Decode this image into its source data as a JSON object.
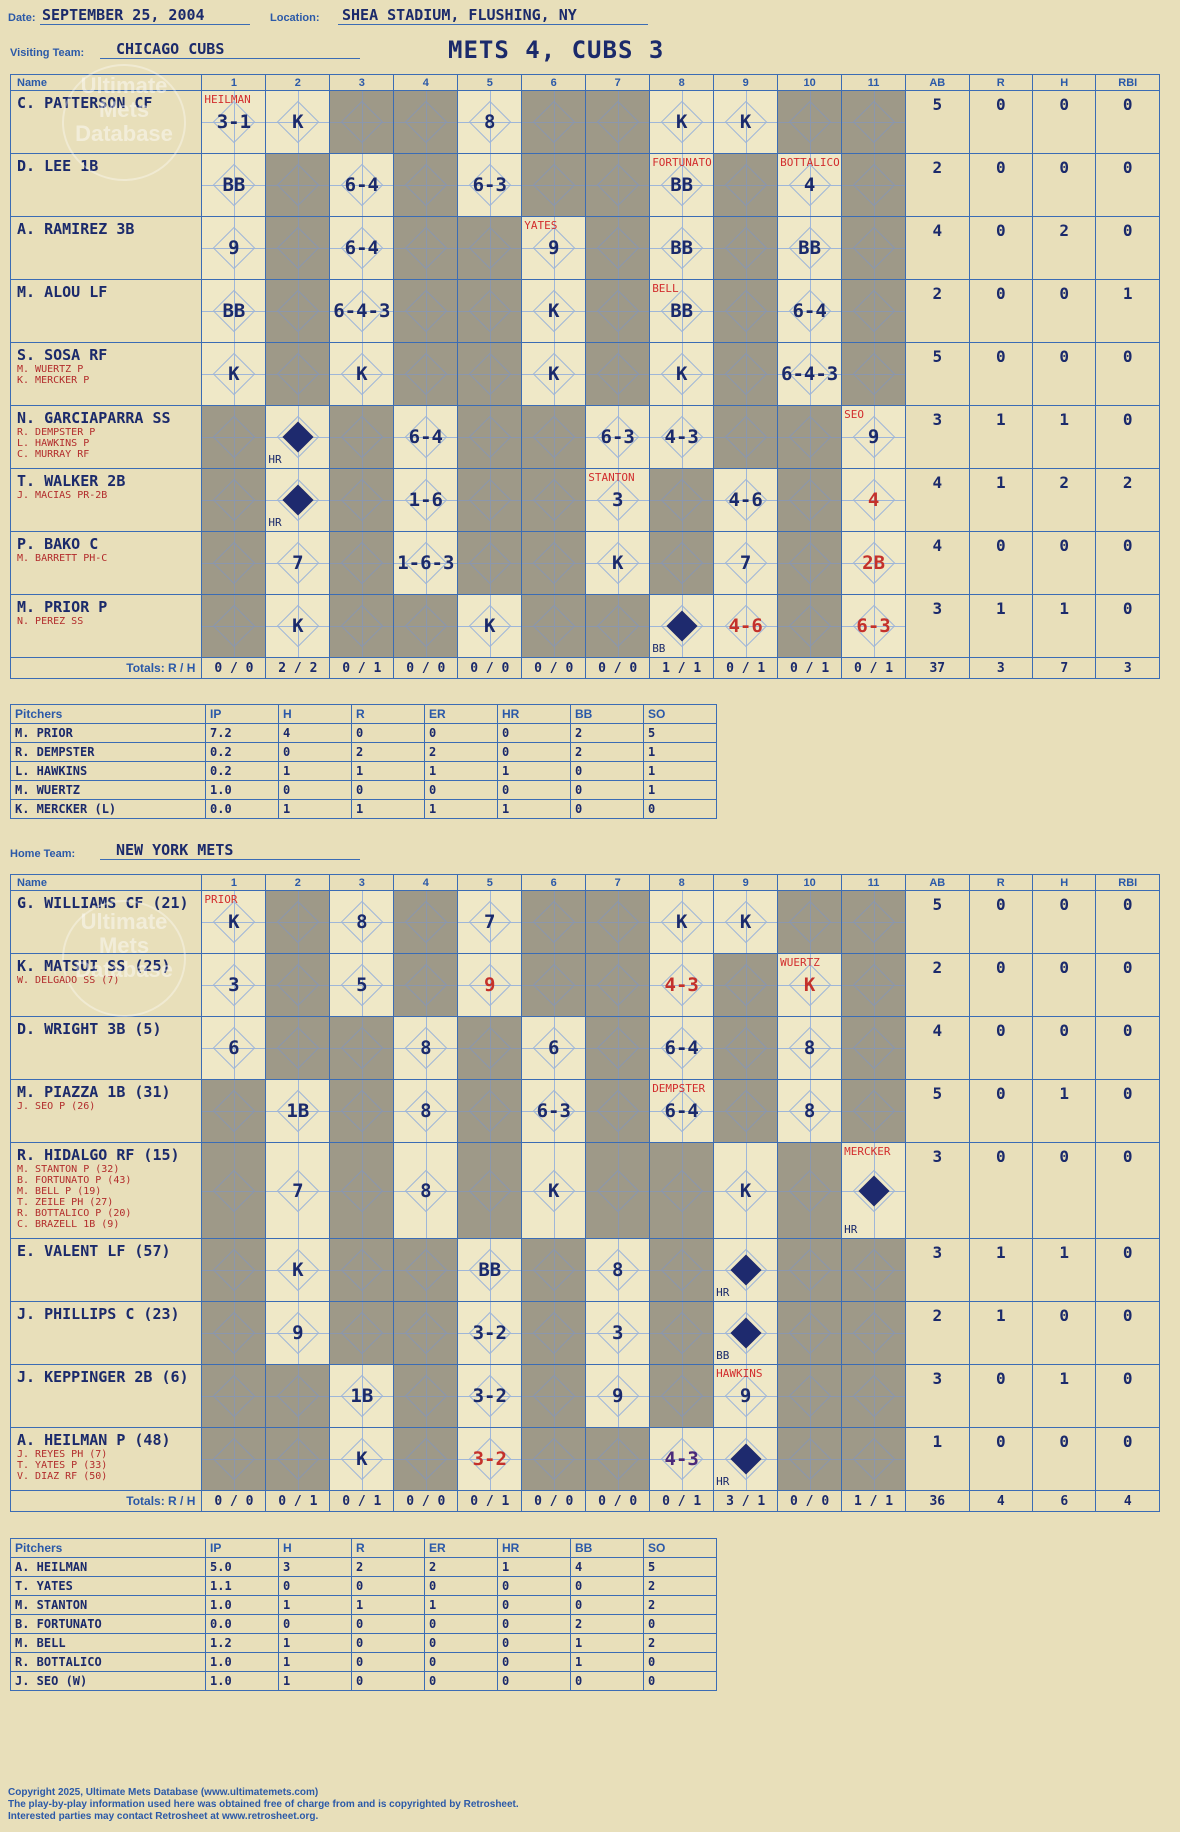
{
  "header": {
    "date_label": "Date:",
    "date": "SEPTEMBER 25, 2004",
    "location_label": "Location:",
    "location": "SHEA STADIUM, FLUSHING, NY",
    "visiting_label": "Visiting Team:",
    "visiting_team": "CHICAGO CUBS",
    "home_label": "Home Team:",
    "home_team": "NEW YORK METS",
    "title": "METS 4, CUBS 3"
  },
  "watermark": {
    "line1": "Ultimate",
    "line2": "Mets",
    "line3": "Database",
    "url": "ultimatemets.com"
  },
  "columns": {
    "name": "Name",
    "innings": [
      "1",
      "2",
      "3",
      "4",
      "5",
      "6",
      "7",
      "8",
      "9",
      "10",
      "11"
    ],
    "stats": [
      "AB",
      "R",
      "H",
      "RBI"
    ],
    "totals_label": "Totals:",
    "r_label": "R",
    "h_label": "H"
  },
  "visitors": {
    "batters": [
      {
        "name": "C. PATTERSON CF",
        "subs": [],
        "ab": "5",
        "r": "0",
        "h": "0",
        "rbi": "0",
        "cells": [
          {
            "t": "3-1",
            "sub": "HEILMAN"
          },
          {
            "t": "K"
          },
          {
            "t": ""
          },
          {
            "t": ""
          },
          {
            "t": "8"
          },
          {
            "t": ""
          },
          {
            "t": ""
          },
          {
            "t": "K"
          },
          {
            "t": "K"
          },
          {
            "t": ""
          },
          {
            "t": ""
          }
        ]
      },
      {
        "name": "D. LEE 1B",
        "subs": [],
        "ab": "2",
        "r": "0",
        "h": "0",
        "rbi": "0",
        "cells": [
          {
            "t": "BB"
          },
          {
            "t": ""
          },
          {
            "t": "6-4"
          },
          {
            "t": ""
          },
          {
            "t": "6-3"
          },
          {
            "t": ""
          },
          {
            "t": ""
          },
          {
            "t": "BB",
            "sub": "FORTUNATO"
          },
          {
            "t": ""
          },
          {
            "t": "4",
            "sub": "BOTTALICO"
          },
          {
            "t": ""
          }
        ]
      },
      {
        "name": "A. RAMIREZ 3B",
        "subs": [],
        "ab": "4",
        "r": "0",
        "h": "2",
        "rbi": "0",
        "cells": [
          {
            "t": "9"
          },
          {
            "t": ""
          },
          {
            "t": "6-4"
          },
          {
            "t": ""
          },
          {
            "t": ""
          },
          {
            "t": "9",
            "sub": "YATES"
          },
          {
            "t": ""
          },
          {
            "t": "BB"
          },
          {
            "t": ""
          },
          {
            "t": "BB"
          },
          {
            "t": ""
          }
        ]
      },
      {
        "name": "M. ALOU LF",
        "subs": [],
        "ab": "2",
        "r": "0",
        "h": "0",
        "rbi": "1",
        "cells": [
          {
            "t": "BB"
          },
          {
            "t": ""
          },
          {
            "t": "6-4-3"
          },
          {
            "t": ""
          },
          {
            "t": ""
          },
          {
            "t": "K"
          },
          {
            "t": ""
          },
          {
            "t": "BB",
            "sub": "BELL"
          },
          {
            "t": ""
          },
          {
            "t": "6-4"
          },
          {
            "t": ""
          }
        ]
      },
      {
        "name": "S. SOSA RF",
        "subs": [
          "M. WUERTZ P",
          "K. MERCKER P"
        ],
        "ab": "5",
        "r": "0",
        "h": "0",
        "rbi": "0",
        "cells": [
          {
            "t": "K"
          },
          {
            "t": ""
          },
          {
            "t": "K"
          },
          {
            "t": ""
          },
          {
            "t": ""
          },
          {
            "t": "K"
          },
          {
            "t": ""
          },
          {
            "t": "K"
          },
          {
            "t": ""
          },
          {
            "t": "6-4-3"
          },
          {
            "t": ""
          }
        ]
      },
      {
        "name": "N. GARCIAPARRA SS",
        "subs": [
          "R. DEMPSTER P",
          "L. HAWKINS P",
          "C. MURRAY RF"
        ],
        "ab": "3",
        "r": "1",
        "h": "1",
        "rbi": "0",
        "cells": [
          {
            "t": ""
          },
          {
            "t": "HR",
            "scored": true
          },
          {
            "t": ""
          },
          {
            "t": "6-4"
          },
          {
            "t": ""
          },
          {
            "t": ""
          },
          {
            "t": "6-3"
          },
          {
            "t": "4-3"
          },
          {
            "t": ""
          },
          {
            "t": ""
          },
          {
            "t": "9",
            "sub": "SEO"
          }
        ]
      },
      {
        "name": "T. WALKER 2B",
        "subs": [
          "J. MACIAS PR-2B"
        ],
        "ab": "4",
        "r": "1",
        "h": "2",
        "rbi": "2",
        "cells": [
          {
            "t": ""
          },
          {
            "t": "HR",
            "scored": true
          },
          {
            "t": ""
          },
          {
            "t": "1-6"
          },
          {
            "t": ""
          },
          {
            "t": ""
          },
          {
            "t": "3",
            "sub": "STANTON"
          },
          {
            "t": ""
          },
          {
            "t": "4-6"
          },
          {
            "t": ""
          },
          {
            "t": "4",
            "red": true
          }
        ]
      },
      {
        "name": "P. BAKO C",
        "subs": [
          "M. BARRETT PH-C"
        ],
        "ab": "4",
        "r": "0",
        "h": "0",
        "rbi": "0",
        "cells": [
          {
            "t": ""
          },
          {
            "t": "7"
          },
          {
            "t": ""
          },
          {
            "t": "1-6-3"
          },
          {
            "t": ""
          },
          {
            "t": ""
          },
          {
            "t": "K"
          },
          {
            "t": ""
          },
          {
            "t": "7"
          },
          {
            "t": ""
          },
          {
            "t": "2B",
            "red": true
          }
        ]
      },
      {
        "name": "M. PRIOR P",
        "subs": [
          "N. PEREZ SS"
        ],
        "ab": "3",
        "r": "1",
        "h": "1",
        "rbi": "0",
        "cells": [
          {
            "t": ""
          },
          {
            "t": "K"
          },
          {
            "t": ""
          },
          {
            "t": ""
          },
          {
            "t": "K"
          },
          {
            "t": ""
          },
          {
            "t": ""
          },
          {
            "t": "BB",
            "scored": true
          },
          {
            "t": "4-6",
            "red": true
          },
          {
            "t": ""
          },
          {
            "t": "6-3",
            "red": true
          }
        ]
      }
    ],
    "totals": [
      [
        "0",
        "0"
      ],
      [
        "2",
        "2"
      ],
      [
        "0",
        "1"
      ],
      [
        "0",
        "0"
      ],
      [
        "0",
        "0"
      ],
      [
        "0",
        "0"
      ],
      [
        "0",
        "0"
      ],
      [
        "1",
        "1"
      ],
      [
        "0",
        "1"
      ],
      [
        "0",
        "1"
      ],
      [
        "0",
        "1"
      ]
    ],
    "stat_totals": [
      "37",
      "3",
      "7",
      "3"
    ],
    "pitchers": [
      [
        "M. PRIOR",
        "7.2",
        "4",
        "0",
        "0",
        "0",
        "2",
        "5"
      ],
      [
        "R. DEMPSTER",
        "0.2",
        "0",
        "2",
        "2",
        "0",
        "2",
        "1"
      ],
      [
        "L. HAWKINS",
        "0.2",
        "1",
        "1",
        "1",
        "1",
        "0",
        "1"
      ],
      [
        "M. WUERTZ",
        "1.0",
        "0",
        "0",
        "0",
        "0",
        "0",
        "1"
      ],
      [
        "K. MERCKER (L)",
        "0.0",
        "1",
        "1",
        "1",
        "1",
        "0",
        "0"
      ]
    ]
  },
  "home": {
    "batters": [
      {
        "name": "G. WILLIAMS CF (21)",
        "subs": [],
        "ab": "5",
        "r": "0",
        "h": "0",
        "rbi": "0",
        "cells": [
          {
            "t": "K",
            "sub": "PRIOR"
          },
          {
            "t": ""
          },
          {
            "t": "8"
          },
          {
            "t": ""
          },
          {
            "t": "7"
          },
          {
            "t": ""
          },
          {
            "t": ""
          },
          {
            "t": "K"
          },
          {
            "t": "K"
          },
          {
            "t": ""
          },
          {
            "t": ""
          }
        ]
      },
      {
        "name": "K. MATSUI SS (25)",
        "subs": [
          "W. DELGADO SS (7)"
        ],
        "ab": "2",
        "r": "0",
        "h": "0",
        "rbi": "0",
        "cells": [
          {
            "t": "3"
          },
          {
            "t": ""
          },
          {
            "t": "5"
          },
          {
            "t": ""
          },
          {
            "t": "9",
            "red": true
          },
          {
            "t": ""
          },
          {
            "t": ""
          },
          {
            "t": "4-3",
            "red": true
          },
          {
            "t": ""
          },
          {
            "t": "K",
            "sub": "WUERTZ",
            "red": true
          },
          {
            "t": ""
          }
        ]
      },
      {
        "name": "D. WRIGHT 3B (5)",
        "subs": [],
        "ab": "4",
        "r": "0",
        "h": "0",
        "rbi": "0",
        "cells": [
          {
            "t": "6"
          },
          {
            "t": ""
          },
          {
            "t": ""
          },
          {
            "t": "8"
          },
          {
            "t": ""
          },
          {
            "t": "6"
          },
          {
            "t": ""
          },
          {
            "t": "6-4"
          },
          {
            "t": ""
          },
          {
            "t": "8"
          },
          {
            "t": ""
          }
        ]
      },
      {
        "name": "M. PIAZZA 1B (31)",
        "subs": [
          "J. SEO P (26)"
        ],
        "ab": "5",
        "r": "0",
        "h": "1",
        "rbi": "0",
        "cells": [
          {
            "t": ""
          },
          {
            "t": "1B"
          },
          {
            "t": ""
          },
          {
            "t": "8"
          },
          {
            "t": ""
          },
          {
            "t": "6-3"
          },
          {
            "t": ""
          },
          {
            "t": "6-4",
            "sub": "DEMPSTER"
          },
          {
            "t": ""
          },
          {
            "t": "8"
          },
          {
            "t": ""
          }
        ]
      },
      {
        "name": "R. HIDALGO RF (15)",
        "subs": [
          "M. STANTON P (32)",
          "B. FORTUNATO P (43)",
          "M. BELL P (19)",
          "T. ZEILE PH (27)",
          "R. BOTTALICO P (20)",
          "C. BRAZELL 1B (9)"
        ],
        "ab": "3",
        "r": "0",
        "h": "0",
        "rbi": "0",
        "cells": [
          {
            "t": ""
          },
          {
            "t": "7"
          },
          {
            "t": ""
          },
          {
            "t": "8"
          },
          {
            "t": ""
          },
          {
            "t": "K"
          },
          {
            "t": ""
          },
          {
            "t": ""
          },
          {
            "t": "K"
          },
          {
            "t": ""
          },
          {
            "t": "HR",
            "scored": true,
            "sub": "MERCKER"
          }
        ]
      },
      {
        "name": "E. VALENT LF (57)",
        "subs": [],
        "ab": "3",
        "r": "1",
        "h": "1",
        "rbi": "0",
        "cells": [
          {
            "t": ""
          },
          {
            "t": "K"
          },
          {
            "t": ""
          },
          {
            "t": ""
          },
          {
            "t": "BB"
          },
          {
            "t": ""
          },
          {
            "t": "8"
          },
          {
            "t": ""
          },
          {
            "t": "HR",
            "scored": true
          },
          {
            "t": ""
          },
          {
            "t": ""
          }
        ]
      },
      {
        "name": "J. PHILLIPS C (23)",
        "subs": [],
        "ab": "2",
        "r": "1",
        "h": "0",
        "rbi": "0",
        "cells": [
          {
            "t": ""
          },
          {
            "t": "9"
          },
          {
            "t": ""
          },
          {
            "t": ""
          },
          {
            "t": "3-2"
          },
          {
            "t": ""
          },
          {
            "t": "3"
          },
          {
            "t": ""
          },
          {
            "t": "BB",
            "scored": true
          },
          {
            "t": ""
          },
          {
            "t": ""
          }
        ]
      },
      {
        "name": "J. KEPPINGER 2B (6)",
        "subs": [],
        "ab": "3",
        "r": "0",
        "h": "1",
        "rbi": "0",
        "cells": [
          {
            "t": ""
          },
          {
            "t": ""
          },
          {
            "t": "1B"
          },
          {
            "t": ""
          },
          {
            "t": "3-2"
          },
          {
            "t": ""
          },
          {
            "t": "9"
          },
          {
            "t": ""
          },
          {
            "t": "9",
            "sub": "HAWKINS"
          },
          {
            "t": ""
          },
          {
            "t": ""
          }
        ]
      },
      {
        "name": "A. HEILMAN P (48)",
        "subs": [
          "J. REYES PH (7)",
          "T. YATES P (33)",
          "V. DIAZ RF (50)"
        ],
        "ab": "1",
        "r": "0",
        "h": "0",
        "rbi": "0",
        "cells": [
          {
            "t": ""
          },
          {
            "t": ""
          },
          {
            "t": "K"
          },
          {
            "t": ""
          },
          {
            "t": "3-2",
            "red": true
          },
          {
            "t": ""
          },
          {
            "t": ""
          },
          {
            "t": "4-3",
            "purple": true
          },
          {
            "t": "HR",
            "scored": true
          },
          {
            "t": ""
          },
          {
            "t": ""
          }
        ]
      }
    ],
    "totals": [
      [
        "0",
        "0"
      ],
      [
        "0",
        "1"
      ],
      [
        "0",
        "1"
      ],
      [
        "0",
        "0"
      ],
      [
        "0",
        "1"
      ],
      [
        "0",
        "0"
      ],
      [
        "0",
        "0"
      ],
      [
        "0",
        "1"
      ],
      [
        "3",
        "1"
      ],
      [
        "0",
        "0"
      ],
      [
        "1",
        "1"
      ]
    ],
    "stat_totals": [
      "36",
      "4",
      "6",
      "4"
    ],
    "pitchers": [
      [
        "A. HEILMAN",
        "5.0",
        "3",
        "2",
        "2",
        "1",
        "4",
        "5"
      ],
      [
        "T. YATES",
        "1.1",
        "0",
        "0",
        "0",
        "0",
        "0",
        "2"
      ],
      [
        "M. STANTON",
        "1.0",
        "1",
        "1",
        "1",
        "0",
        "0",
        "2"
      ],
      [
        "B. FORTUNATO",
        "0.0",
        "0",
        "0",
        "0",
        "0",
        "2",
        "0"
      ],
      [
        "M. BELL",
        "1.2",
        "1",
        "0",
        "0",
        "0",
        "1",
        "2"
      ],
      [
        "R. BOTTALICO",
        "1.0",
        "1",
        "0",
        "0",
        "0",
        "1",
        "0"
      ],
      [
        "J. SEO (W)",
        "1.0",
        "1",
        "0",
        "0",
        "0",
        "0",
        "0"
      ]
    ]
  },
  "pitcher_headers": [
    "Pitchers",
    "IP",
    "H",
    "R",
    "ER",
    "HR",
    "BB",
    "SO"
  ],
  "footer": {
    "line1": "Copyright 2025, Ultimate Mets Database (www.ultimatemets.com)",
    "line2": "The play-by-play information used here was obtained free of charge from and is copyrighted by Retrosheet.",
    "line3": "Interested parties may contact Retrosheet at www.retrosheet.org."
  }
}
